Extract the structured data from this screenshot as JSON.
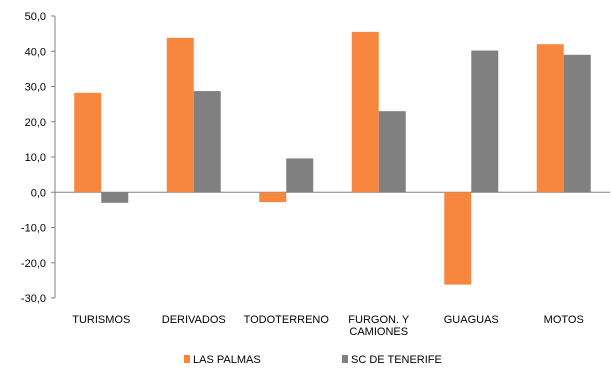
{
  "chart_data": {
    "type": "bar",
    "title": "",
    "xlabel": "",
    "ylabel": "",
    "ylim": [
      -30,
      50
    ],
    "yticks": [
      "-30,0",
      "-20,0",
      "-10,0",
      "0,0",
      "10,0",
      "20,0",
      "30,0",
      "40,0",
      "50,0"
    ],
    "categories": [
      [
        "TURISMOS"
      ],
      [
        "DERIVADOS"
      ],
      [
        "TODOTERRENO"
      ],
      [
        "FURGON. Y",
        "CAMIONES"
      ],
      [
        "GUAGUAS"
      ],
      [
        "MOTOS"
      ]
    ],
    "series": [
      {
        "name": "LAS PALMAS",
        "color": "#F7873F",
        "values": [
          28.2,
          43.8,
          -2.8,
          45.5,
          -26.2,
          42.0
        ]
      },
      {
        "name": "SC DE TENERIFE",
        "color": "#808080",
        "values": [
          -3.0,
          28.7,
          9.6,
          23.0,
          40.2,
          39.0
        ]
      }
    ],
    "grid": false,
    "legend_position": "bottom"
  }
}
